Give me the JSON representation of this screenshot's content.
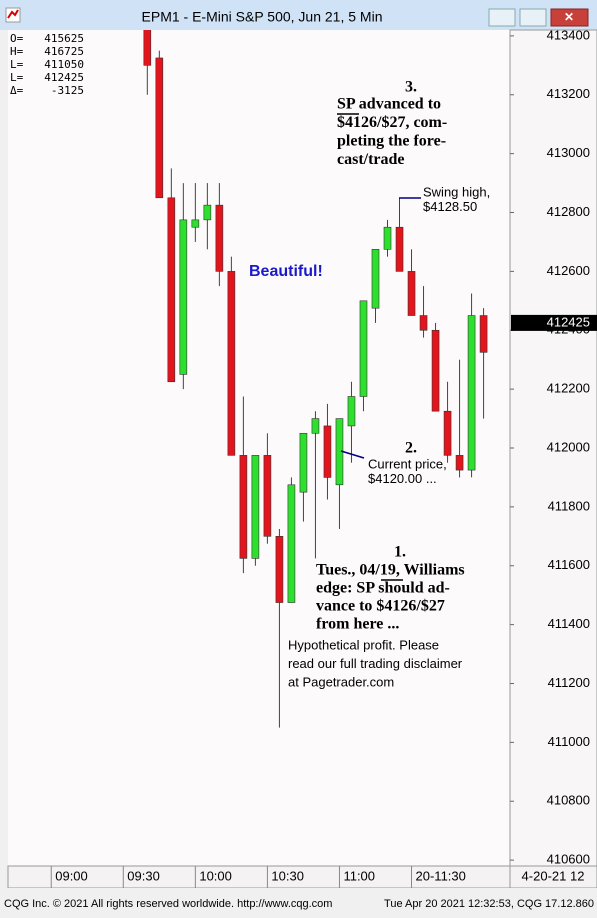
{
  "window_title": "EPM1 - E-Mini S&P 500, Jun 21, 5 Min",
  "chart_data": {
    "type": "candlestick",
    "x": [
      580,
      585,
      590,
      595,
      600,
      605,
      610,
      615,
      620,
      625,
      630,
      635,
      640,
      645,
      650,
      655,
      660,
      665,
      670,
      675,
      680,
      685,
      690,
      695,
      700,
      705,
      710,
      715,
      720
    ],
    "open": [
      413425,
      413325,
      412850,
      412250,
      412750,
      412775,
      412825,
      412600,
      411975,
      411625,
      411975,
      411700,
      411475,
      411850,
      412050,
      412075,
      411875,
      412075,
      412175,
      412475,
      412675,
      412750,
      412600,
      412450,
      412400,
      412125,
      411975,
      411925,
      412450
    ],
    "high": [
      413450,
      413350,
      412950,
      412900,
      412900,
      412900,
      412900,
      412650,
      412175,
      411975,
      412050,
      411725,
      411900,
      412050,
      412125,
      412150,
      412100,
      412225,
      412500,
      412675,
      412775,
      412850,
      412675,
      412550,
      412425,
      412225,
      412300,
      412525,
      412475
    ],
    "low": [
      413200,
      412850,
      412225,
      412200,
      412700,
      412675,
      412550,
      411975,
      411575,
      411600,
      411675,
      411050,
      411475,
      411750,
      411625,
      411825,
      411725,
      411950,
      412125,
      412425,
      412650,
      412600,
      412450,
      412375,
      412125,
      411950,
      411900,
      411900,
      412100
    ],
    "close": [
      413300,
      412850,
      412225,
      412775,
      412775,
      412825,
      412600,
      411975,
      411625,
      411975,
      411700,
      411475,
      411875,
      412050,
      412100,
      411900,
      412100,
      412175,
      412500,
      412675,
      412750,
      412600,
      412450,
      412400,
      412125,
      411975,
      411925,
      412450,
      412325
    ],
    "up_color": "#2ee02e",
    "down_color": "#e3141c",
    "xlim": [
      522,
      731
    ],
    "xticks": [
      {
        "value": 540,
        "label": "09:00"
      },
      {
        "value": 570,
        "label": "09:30"
      },
      {
        "value": 600,
        "label": "10:00"
      },
      {
        "value": 630,
        "label": "10:30"
      },
      {
        "value": 660,
        "label": "11:00"
      },
      {
        "value": 690,
        "label": "20-11:30"
      }
    ],
    "x_date_label": "4-20-21 12",
    "ylim": [
      410580,
      413420
    ],
    "yticks": [
      413400,
      413200,
      413000,
      412800,
      412600,
      412400,
      412200,
      412000,
      411800,
      411600,
      411400,
      411200,
      411000,
      410800,
      410600
    ],
    "last_price": 412425,
    "header": [
      {
        "label": "O=",
        "value": 415625
      },
      {
        "label": "H=",
        "value": 416725
      },
      {
        "label": "L=",
        "value": 411050
      },
      {
        "label": "L=",
        "value": 412425
      },
      {
        "label": "Δ=",
        "value": -3125
      }
    ],
    "annotations": {
      "note3": {
        "number": "3.",
        "lines": [
          "SP advanced to",
          "$4126/$27, com-",
          "pleting the fore-",
          "cast/trade"
        ]
      },
      "swing": {
        "lines": [
          "Swing high,",
          "$4128.50"
        ]
      },
      "beautiful": "Beautiful!",
      "note2": {
        "number": "2.",
        "lines": [
          "Current price,",
          "$4120.00 ..."
        ]
      },
      "note1": {
        "number": "1.",
        "lines": [
          "Tues., 04/19, Williams",
          "edge: SP should ad-",
          "vance to $4126/$27",
          "from here ..."
        ]
      },
      "disclaimer": [
        "Hypothetical profit. Please",
        "read our full trading disclaimer",
        "at Pagetrader.com"
      ]
    }
  },
  "footer": {
    "left": "CQG Inc. © 2021 All rights reserved worldwide. http://www.cqg.com",
    "right": "Tue Apr 20 2021 12:32:53, CQG 17.12.860"
  }
}
